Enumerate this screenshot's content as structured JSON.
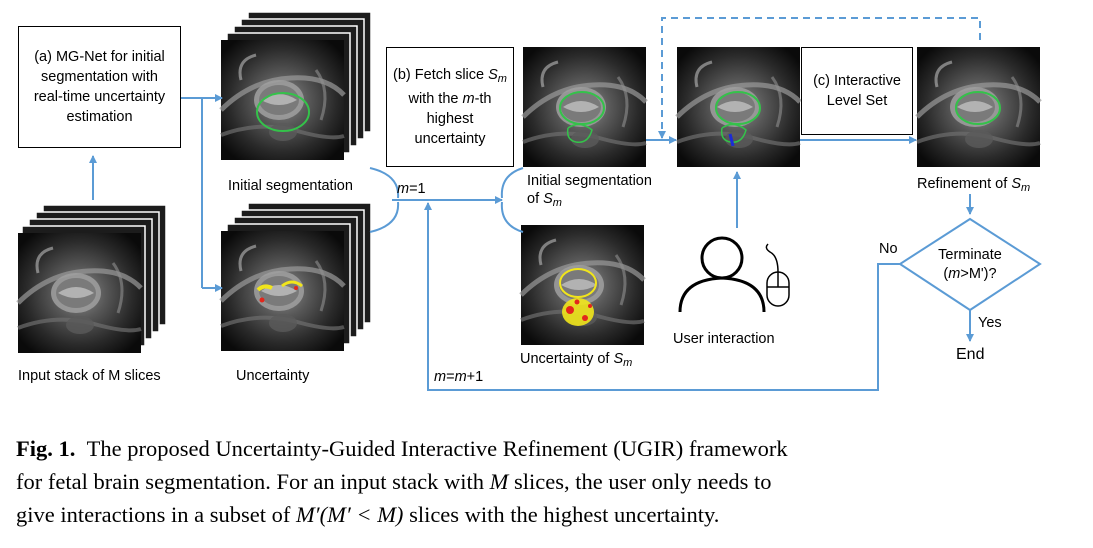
{
  "boxes": {
    "mgnet": [
      "(a) MG-Net for initial",
      "segmentation with",
      "real-time uncertainty",
      "estimation"
    ],
    "fetch": {
      "l1_prefix": "(b) Fetch slice ",
      "l1_var": "S",
      "l1_sub": "m",
      "l2_prefix": "with the ",
      "l2_var": "m",
      "l2_suffix": "-th",
      "l3": "highest",
      "l4": "uncertainty"
    },
    "ils": [
      "(c) Interactive",
      "Level Set"
    ]
  },
  "labels": {
    "input_stack": "Input stack of M slices",
    "initial_seg": "Initial segmentation",
    "uncertainty": "Uncertainty",
    "m_eq_1_var": "m",
    "m_eq_1_rest": "=1",
    "init_seg_sm_1": "Initial segmentation",
    "init_seg_sm_2_prefix": "of ",
    "init_seg_sm_2_var": "S",
    "init_seg_sm_2_sub": "m",
    "unc_sm_prefix": "Uncertainty of ",
    "unc_sm_var": "S",
    "unc_sm_sub": "m",
    "user_interaction": "User interaction",
    "refinement_prefix": "Refinement of ",
    "refinement_var": "S",
    "refinement_sub": "m",
    "no": "No",
    "yes": "Yes",
    "end": "End",
    "loop_var1": "m",
    "loop_eq": "=",
    "loop_var2": "m",
    "loop_rest": "+1",
    "decision_1": "Terminate",
    "decision_2_prefix": "(",
    "decision_2_var": "m",
    "decision_2_rest": ">M')?"
  },
  "caption": {
    "fig": "Fig. 1.",
    "line1": "The proposed Uncertainty-Guided Interactive Refinement (UGIR) framework",
    "line2_a": "for fetal brain segmentation. For an input stack with ",
    "line2_m": "M",
    "line2_b": " slices, the user only needs to",
    "line3_a": "give interactions in a subset of ",
    "line3_math": "M′(M′ < M)",
    "line3_b": " slices with the highest uncertainty."
  },
  "colors": {
    "arrow": "#5b9bd5",
    "overlay_green": "#34c24a",
    "overlay_yellow": "#f1e51b",
    "overlay_red": "#e3261b",
    "overlay_blue": "#1c2bd6"
  }
}
